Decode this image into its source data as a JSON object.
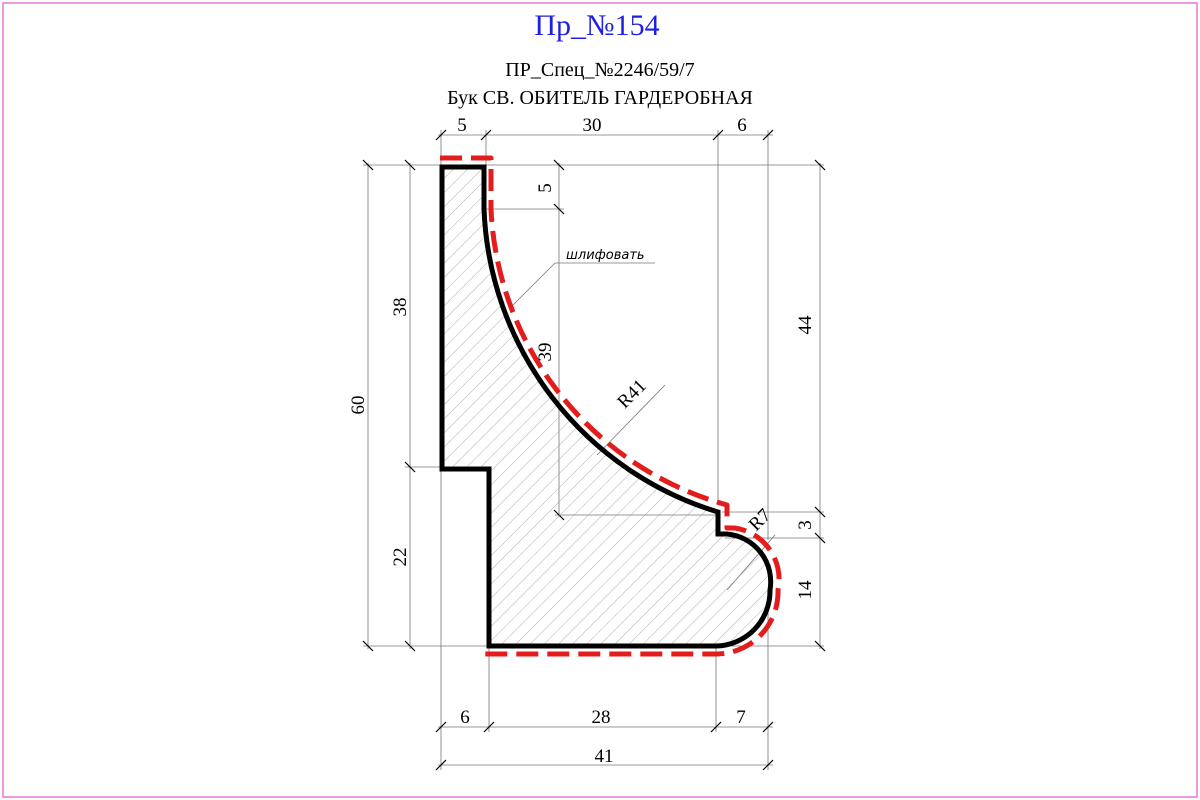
{
  "header": {
    "title": "Пр_№154",
    "subtitle_code": "ПР_Спец_№2246/59/7",
    "subtitle_name": "Бук  СВ. ОБИТЕЛЬ ГАРДЕРОБНАЯ"
  },
  "dimensions": {
    "top_left": "5",
    "top_middle": "30",
    "top_right": "6",
    "left_total": "60",
    "left_upper": "38",
    "left_lower": "22",
    "inner_top": "5",
    "inner_height": "39",
    "right_upper": "44",
    "right_small": "3",
    "right_lower": "14",
    "bottom_left": "6",
    "bottom_middle": "28",
    "bottom_right": "7",
    "bottom_total": "41",
    "radius_large": "R41",
    "radius_small": "R7"
  },
  "annotation": {
    "sanding_note": "шлифовать"
  },
  "colors": {
    "title": "#1f1fe0",
    "profile_outline": "#000000",
    "sanding_dash": "#e51c1c",
    "frame": "#e07ad6",
    "hatch": "#9a9a9a"
  }
}
